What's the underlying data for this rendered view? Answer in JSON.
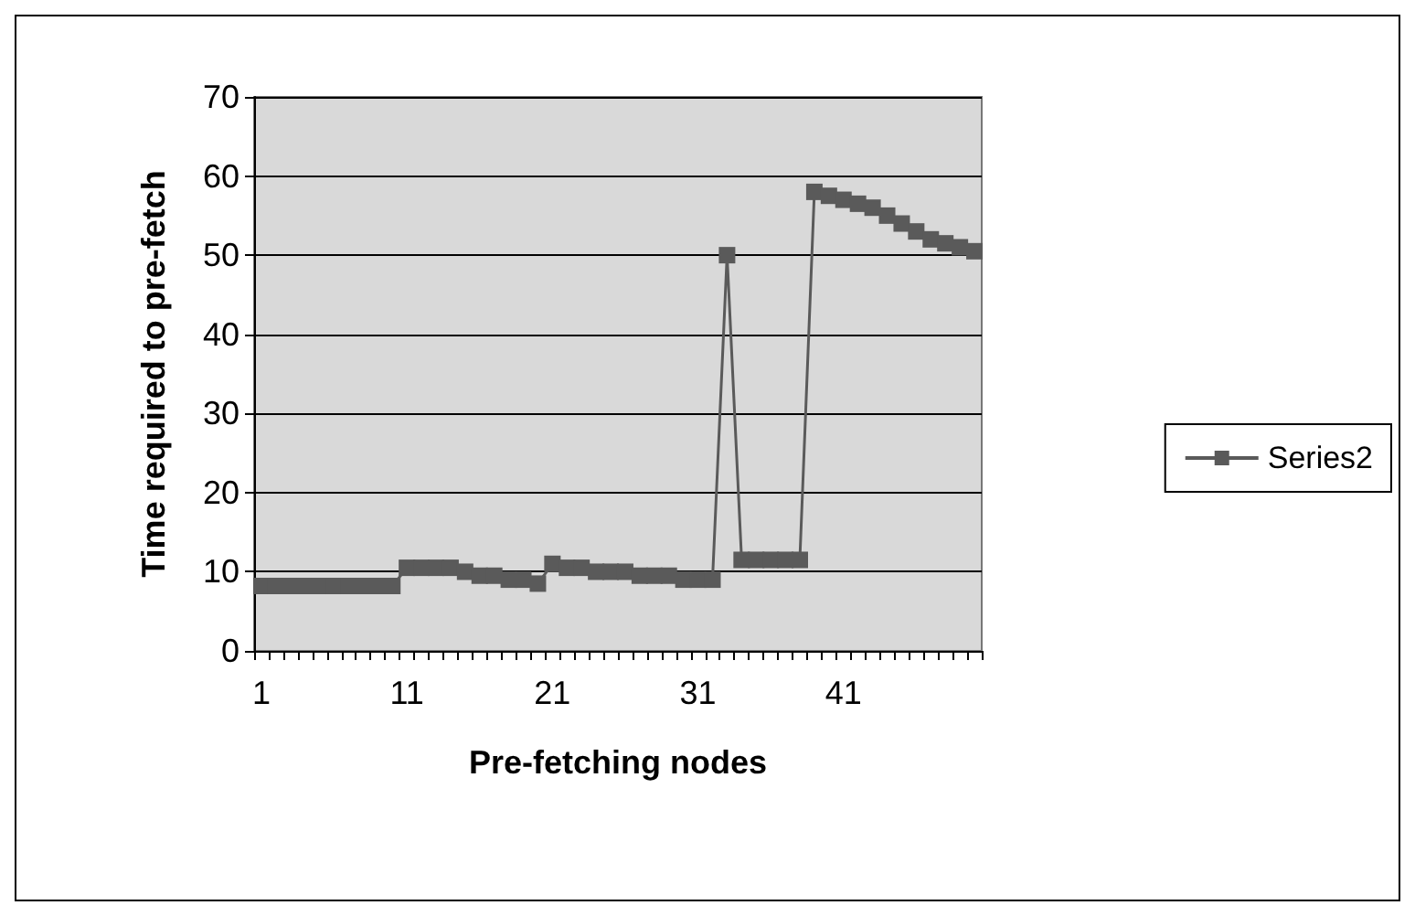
{
  "chart_data": {
    "type": "line",
    "xlabel": "Pre-fetching nodes",
    "ylabel": "Time required to pre-fetch",
    "categories": [
      "1",
      null,
      null,
      null,
      null,
      null,
      null,
      null,
      null,
      null,
      "11",
      null,
      null,
      null,
      null,
      null,
      null,
      null,
      null,
      null,
      "21",
      null,
      null,
      null,
      null,
      null,
      null,
      null,
      null,
      null,
      "31",
      null,
      null,
      null,
      null,
      null,
      null,
      null,
      null,
      null,
      "41",
      null,
      null,
      null,
      null,
      null,
      null,
      null,
      null,
      null
    ],
    "series": [
      {
        "name": "Series2",
        "color": "#5a5a5a",
        "values": [
          8.2,
          8.2,
          8.2,
          8.2,
          8.2,
          8.2,
          8.2,
          8.2,
          8.2,
          8.2,
          10.5,
          10.5,
          10.5,
          10.5,
          10,
          9.5,
          9.5,
          9,
          9,
          8.5,
          11,
          10.5,
          10.5,
          10,
          10,
          10,
          9.5,
          9.5,
          9.5,
          9,
          9,
          9,
          50,
          11.5,
          11.5,
          11.5,
          11.5,
          11.5,
          58,
          57.5,
          57,
          56.5,
          56,
          55,
          54,
          53,
          52,
          51.5,
          51,
          50.5
        ]
      }
    ],
    "ylim": [
      0,
      70
    ],
    "yticks": [
      0,
      10,
      20,
      30,
      40,
      50,
      60,
      70
    ],
    "grid": "y",
    "legend": "right",
    "marker": "square",
    "line_style": "solid"
  }
}
